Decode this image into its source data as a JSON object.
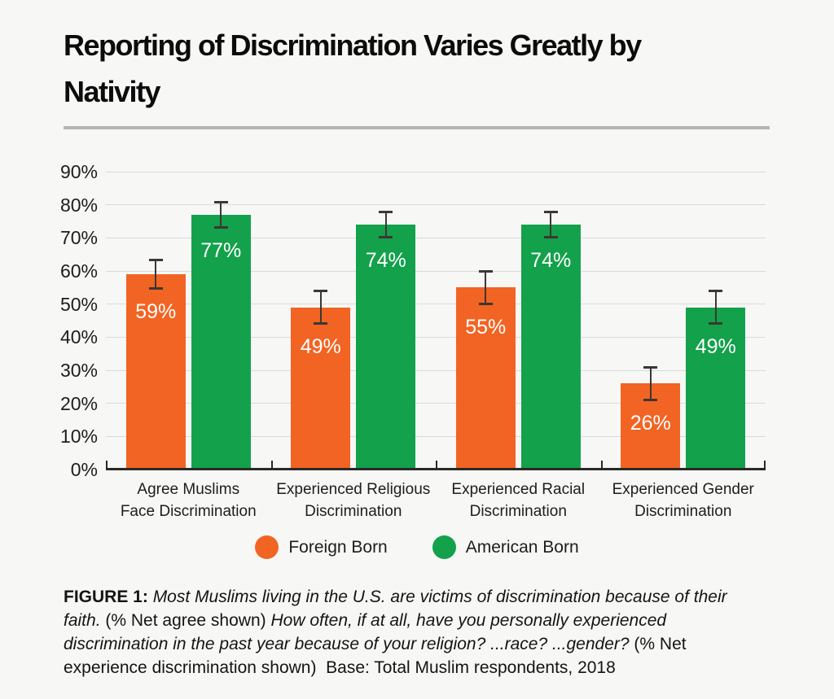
{
  "title": {
    "lines": [
      "Reporting of Discrimination Varies Greatly by",
      "Nativity"
    ]
  },
  "chart_data": {
    "type": "bar",
    "title": "Reporting of Discrimination Varies Greatly by Nativity",
    "categories": [
      {
        "label": "Agree Muslims Face Discrimination",
        "lines": [
          "Agree Muslims",
          "Face Discrimination"
        ]
      },
      {
        "label": "Experienced Religious Discrimination",
        "lines": [
          "Experienced Religious",
          "Discrimination"
        ]
      },
      {
        "label": "Experienced Racial Discrimination",
        "lines": [
          "Experienced Racial",
          "Discrimination"
        ]
      },
      {
        "label": "Experienced Gender Discrimination",
        "lines": [
          "Experienced Gender",
          "Discrimination"
        ]
      }
    ],
    "series": [
      {
        "name": "Foreign Born",
        "color": "#f26423",
        "values": [
          59,
          49,
          55,
          26
        ],
        "error_margins": [
          4.5,
          5,
          5,
          5
        ]
      },
      {
        "name": "American Born",
        "color": "#13a14b",
        "values": [
          77,
          74,
          74,
          49
        ],
        "error_margins": [
          4,
          4,
          4,
          5
        ]
      }
    ],
    "value_label_suffix": "%",
    "y_ticks": [
      "0%",
      "10%",
      "20%",
      "30%",
      "40%",
      "50%",
      "60%",
      "70%",
      "80%",
      "90%"
    ],
    "ylim": [
      0,
      90
    ],
    "grid": true,
    "error_bars": true,
    "legend_position": "bottom",
    "xlabel": "",
    "ylabel": ""
  },
  "legend": {
    "items": [
      {
        "label": "Foreign Born",
        "color": "#f26423"
      },
      {
        "label": "American Born",
        "color": "#13a14b"
      }
    ]
  },
  "caption": {
    "parts": [
      {
        "text": "FIGURE 1: ",
        "style": "bold"
      },
      {
        "text": "Most Muslims living in the U.S. are victims of discrimination because of their faith. ",
        "style": "italic"
      },
      {
        "text": "(% Net agree shown) ",
        "style": "regular"
      },
      {
        "text": "How often, if at all, have you personally experienced discrimination in the past year because of your religion? ...race? ...gender? ",
        "style": "italic"
      },
      {
        "text": "(% Net experience discrimination shown)  Base: Total Muslim respondents, 2018",
        "style": "regular"
      }
    ]
  }
}
